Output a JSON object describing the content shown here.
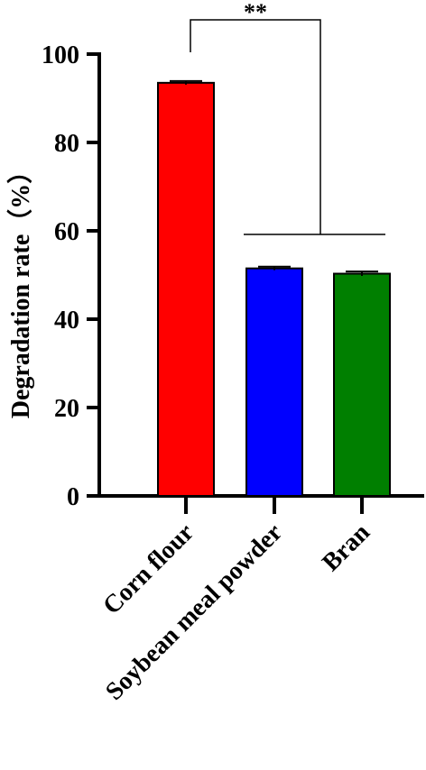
{
  "chart_data": {
    "type": "bar",
    "title": "",
    "xlabel": "",
    "ylabel": "Degradation rate（%）",
    "categories": [
      "Corn flour",
      "Soybean meal powder",
      "Bran"
    ],
    "values": [
      93.5,
      51.5,
      50.3
    ],
    "errors": [
      0.4,
      0.4,
      0.5
    ],
    "colors": [
      "#ff0000",
      "#0000ff",
      "#007f00"
    ],
    "ylim": [
      0,
      100
    ],
    "yticks": [
      0,
      20,
      40,
      60,
      80,
      100
    ],
    "grid": false,
    "legend": "none",
    "significance": {
      "label": "**",
      "from": [
        "Corn flour"
      ],
      "to": [
        "Soybean meal powder",
        "Bran"
      ]
    }
  }
}
